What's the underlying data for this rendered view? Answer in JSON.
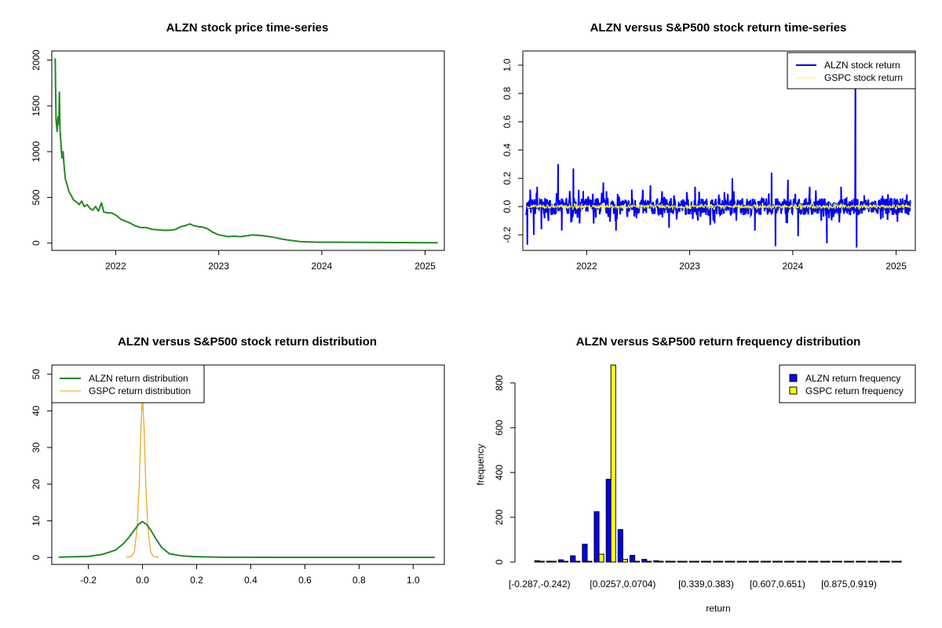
{
  "chart_data": [
    {
      "id": "price",
      "type": "line",
      "title": "ALZN stock price time-series",
      "xlabel": "",
      "ylabel": "",
      "x_ticks": [
        "2022",
        "2023",
        "2024",
        "2025"
      ],
      "y_ticks": [
        "0",
        "500",
        "1000",
        "1500",
        "2000"
      ],
      "xlim": [
        "2021-05-20",
        "2025-03-10"
      ],
      "ylim": [
        -80,
        2100
      ],
      "grid": false,
      "series": [
        {
          "color": "#228B22",
          "points": [
            [
              "2021-06-01",
              2020
            ],
            [
              "2021-06-04",
              1350
            ],
            [
              "2021-06-08",
              1220
            ],
            [
              "2021-06-11",
              1380
            ],
            [
              "2021-06-14",
              1300
            ],
            [
              "2021-06-16",
              1650
            ],
            [
              "2021-06-18",
              1250
            ],
            [
              "2021-06-22",
              1050
            ],
            [
              "2021-06-25",
              930
            ],
            [
              "2021-06-29",
              1000
            ],
            [
              "2021-07-02",
              860
            ],
            [
              "2021-07-07",
              700
            ],
            [
              "2021-07-13",
              640
            ],
            [
              "2021-07-20",
              560
            ],
            [
              "2021-07-28",
              520
            ],
            [
              "2021-08-05",
              470
            ],
            [
              "2021-08-15",
              450
            ],
            [
              "2021-08-25",
              420
            ],
            [
              "2021-09-03",
              460
            ],
            [
              "2021-09-12",
              400
            ],
            [
              "2021-09-22",
              420
            ],
            [
              "2021-10-02",
              380
            ],
            [
              "2021-10-12",
              360
            ],
            [
              "2021-10-22",
              400
            ],
            [
              "2021-11-01",
              350
            ],
            [
              "2021-11-12",
              440
            ],
            [
              "2021-11-20",
              340
            ],
            [
              "2021-12-03",
              330
            ],
            [
              "2021-12-18",
              330
            ],
            [
              "2022-01-05",
              300
            ],
            [
              "2022-01-20",
              260
            ],
            [
              "2022-02-05",
              240
            ],
            [
              "2022-02-20",
              220
            ],
            [
              "2022-03-10",
              190
            ],
            [
              "2022-04-01",
              170
            ],
            [
              "2022-04-20",
              170
            ],
            [
              "2022-05-10",
              150
            ],
            [
              "2022-06-01",
              145
            ],
            [
              "2022-06-20",
              140
            ],
            [
              "2022-07-10",
              140
            ],
            [
              "2022-08-01",
              150
            ],
            [
              "2022-08-20",
              180
            ],
            [
              "2022-09-05",
              190
            ],
            [
              "2022-09-20",
              210
            ],
            [
              "2022-10-05",
              190
            ],
            [
              "2022-10-20",
              180
            ],
            [
              "2022-11-05",
              175
            ],
            [
              "2022-11-20",
              160
            ],
            [
              "2022-12-10",
              120
            ],
            [
              "2023-01-01",
              90
            ],
            [
              "2023-01-20",
              80
            ],
            [
              "2023-02-05",
              70
            ],
            [
              "2023-02-25",
              75
            ],
            [
              "2023-03-20",
              70
            ],
            [
              "2023-04-10",
              80
            ],
            [
              "2023-04-30",
              90
            ],
            [
              "2023-05-20",
              85
            ],
            [
              "2023-06-10",
              80
            ],
            [
              "2023-07-01",
              70
            ],
            [
              "2023-07-20",
              60
            ],
            [
              "2023-08-10",
              45
            ],
            [
              "2023-09-01",
              35
            ],
            [
              "2023-09-25",
              25
            ],
            [
              "2023-10-20",
              15
            ],
            [
              "2023-11-20",
              12
            ],
            [
              "2023-12-20",
              10
            ],
            [
              "2024-02-01",
              10
            ],
            [
              "2024-04-01",
              9
            ],
            [
              "2024-06-01",
              8
            ],
            [
              "2024-08-01",
              7
            ],
            [
              "2024-10-01",
              6
            ],
            [
              "2024-12-01",
              5
            ],
            [
              "2025-02-15",
              4
            ]
          ]
        }
      ]
    },
    {
      "id": "returns",
      "type": "line",
      "title": "ALZN versus S&P500 stock return time-series",
      "xlabel": "",
      "ylabel": "",
      "x_ticks": [
        "2022",
        "2023",
        "2024",
        "2025"
      ],
      "y_ticks": [
        "-0.2",
        "0.0",
        "0.2",
        "0.4",
        "0.6",
        "0.8",
        "1.0"
      ],
      "xlim": [
        "2021-05-20",
        "2025-03-10"
      ],
      "ylim": [
        -0.31,
        1.1
      ],
      "legend": "top-right",
      "grid": false,
      "series": [
        {
          "name": "ALZN stock return",
          "color": "#0000FF",
          "start": "2021-06-01",
          "end": "2025-02-20",
          "typical_amplitude": 0.06,
          "spikes": [
            [
              "2021-06-05",
              -0.27
            ],
            [
              "2021-06-15",
              0.12
            ],
            [
              "2021-06-28",
              -0.2
            ],
            [
              "2021-07-10",
              0.14
            ],
            [
              "2021-07-25",
              -0.16
            ],
            [
              "2021-09-22",
              0.3
            ],
            [
              "2021-10-05",
              -0.17
            ],
            [
              "2021-11-15",
              0.27
            ],
            [
              "2021-12-20",
              0.11
            ],
            [
              "2022-03-01",
              0.17
            ],
            [
              "2022-04-15",
              -0.17
            ],
            [
              "2022-06-10",
              0.12
            ],
            [
              "2022-08-15",
              0.15
            ],
            [
              "2022-10-20",
              -0.15
            ],
            [
              "2023-01-20",
              0.14
            ],
            [
              "2023-03-15",
              -0.13
            ],
            [
              "2023-06-01",
              0.2
            ],
            [
              "2023-08-20",
              -0.17
            ],
            [
              "2023-10-18",
              0.24
            ],
            [
              "2023-11-01",
              -0.28
            ],
            [
              "2023-12-15",
              0.19
            ],
            [
              "2024-01-20",
              -0.21
            ],
            [
              "2024-03-01",
              0.14
            ],
            [
              "2024-05-01",
              -0.26
            ],
            [
              "2024-06-20",
              0.14
            ],
            [
              "2024-08-10",
              1.05
            ],
            [
              "2024-08-14",
              -0.29
            ],
            [
              "2024-09-10",
              0.08
            ],
            [
              "2024-11-15",
              -0.08
            ]
          ]
        },
        {
          "name": "GSPC stock return",
          "color": "#FFFF00",
          "start": "2021-06-01",
          "end": "2025-02-20",
          "typical_amplitude": 0.012
        }
      ]
    },
    {
      "id": "density",
      "type": "line",
      "title": "ALZN versus S&P500 stock return distribution",
      "xlabel": "",
      "ylabel": "",
      "x_ticks": [
        "-0.2",
        "0.0",
        "0.2",
        "0.4",
        "0.6",
        "0.8",
        "1.0"
      ],
      "y_ticks": [
        "0",
        "10",
        "20",
        "30",
        "40",
        "50"
      ],
      "xlim": [
        -0.335,
        1.115
      ],
      "ylim": [
        -1.9,
        52.5
      ],
      "legend": "top-left",
      "grid": false,
      "series": [
        {
          "name": "ALZN return distribution",
          "color": "#228B22",
          "points": [
            [
              -0.31,
              0.1
            ],
            [
              -0.2,
              0.3
            ],
            [
              -0.15,
              0.8
            ],
            [
              -0.1,
              2.0
            ],
            [
              -0.07,
              3.8
            ],
            [
              -0.05,
              5.5
            ],
            [
              -0.03,
              7.5
            ],
            [
              -0.015,
              9.0
            ],
            [
              0.0,
              9.8
            ],
            [
              0.015,
              9.0
            ],
            [
              0.03,
              7.5
            ],
            [
              0.05,
              5.0
            ],
            [
              0.07,
              2.8
            ],
            [
              0.1,
              1.0
            ],
            [
              0.15,
              0.4
            ],
            [
              0.2,
              0.2
            ],
            [
              0.3,
              0.05
            ],
            [
              0.5,
              0.02
            ],
            [
              0.8,
              0.02
            ],
            [
              1.08,
              0.02
            ]
          ]
        },
        {
          "name": "GSPC return distribution",
          "color": "#E8A317",
          "points": [
            [
              -0.06,
              0.0
            ],
            [
              -0.04,
              0.3
            ],
            [
              -0.03,
              1.5
            ],
            [
              -0.02,
              8.0
            ],
            [
              -0.012,
              20.0
            ],
            [
              -0.006,
              35.0
            ],
            [
              0.0,
              44.0
            ],
            [
              0.006,
              35.0
            ],
            [
              0.012,
              20.0
            ],
            [
              0.02,
              8.0
            ],
            [
              0.03,
              1.5
            ],
            [
              0.04,
              0.3
            ],
            [
              0.06,
              0.0
            ]
          ]
        }
      ]
    },
    {
      "id": "freq",
      "type": "bar",
      "title": "ALZN versus S&P500 return frequency distribution",
      "xlabel": "return",
      "ylabel": "frequency",
      "category_labels": [
        "[-0.287,-0.242)",
        "[0.0257,0.0704)",
        "[0.339,0.383)",
        "[0.607,0.651)",
        "[0.875,0.919)"
      ],
      "y_ticks": [
        "0",
        "200",
        "400",
        "600",
        "800"
      ],
      "ylim": [
        0,
        880
      ],
      "bin_count": 31,
      "legend": "top-right",
      "grid": false,
      "series": [
        {
          "name": "ALZN return frequency",
          "color": "#0000FF",
          "values": [
            6,
            4,
            10,
            28,
            80,
            225,
            370,
            145,
            30,
            12,
            6,
            4,
            3,
            2,
            2,
            1,
            1,
            1,
            1,
            1,
            1,
            1,
            1,
            1,
            1,
            1,
            1,
            1,
            1,
            1,
            1
          ]
        },
        {
          "name": "GSPC return frequency",
          "color": "#FFFF00",
          "values": [
            0,
            0,
            0,
            0,
            2,
            35,
            880,
            12,
            0,
            0,
            0,
            0,
            0,
            0,
            0,
            0,
            0,
            0,
            0,
            0,
            0,
            0,
            0,
            0,
            0,
            0,
            0,
            0,
            0,
            0,
            0
          ]
        }
      ]
    }
  ]
}
